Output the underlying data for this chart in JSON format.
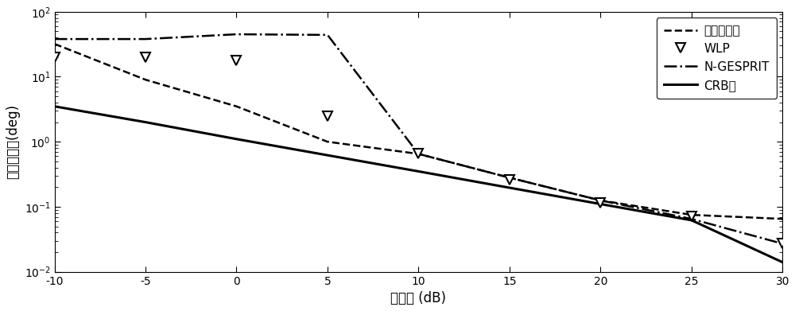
{
  "xlabel": "信噪比 (dB)",
  "ylabel": "均方根误差(deg)",
  "xlim": [
    -10,
    30
  ],
  "ylim": [
    0.01,
    100
  ],
  "xticks": [
    -10,
    -5,
    0,
    5,
    10,
    15,
    20,
    25,
    30
  ],
  "legend_labels": [
    "本发明方法",
    "WLP",
    "N-GESPRIT",
    "CRB界"
  ],
  "proposed_x": [
    -10,
    -5,
    0,
    5,
    10,
    15,
    20,
    25,
    30
  ],
  "proposed_y": [
    32,
    9.0,
    3.5,
    1.0,
    0.65,
    0.28,
    0.125,
    0.075,
    0.065
  ],
  "wlp_x": [
    -10,
    -5,
    0,
    5,
    10,
    15,
    20,
    25,
    30
  ],
  "wlp_y": [
    20,
    20,
    18,
    2.5,
    0.65,
    0.26,
    0.115,
    0.072,
    0.027
  ],
  "ngesprit_x": [
    -10,
    -5,
    0,
    5,
    10,
    15,
    20,
    25,
    30
  ],
  "ngesprit_y": [
    38,
    38,
    45,
    44,
    0.65,
    0.28,
    0.125,
    0.065,
    0.027
  ],
  "crb_x": [
    -10,
    -5,
    0,
    5,
    10,
    15,
    20,
    25,
    30
  ],
  "crb_y": [
    3.5,
    2.0,
    1.1,
    0.62,
    0.35,
    0.196,
    0.11,
    0.062,
    0.014
  ],
  "bg_color": "#ffffff",
  "figsize": [
    10.0,
    3.91
  ],
  "dpi": 100
}
